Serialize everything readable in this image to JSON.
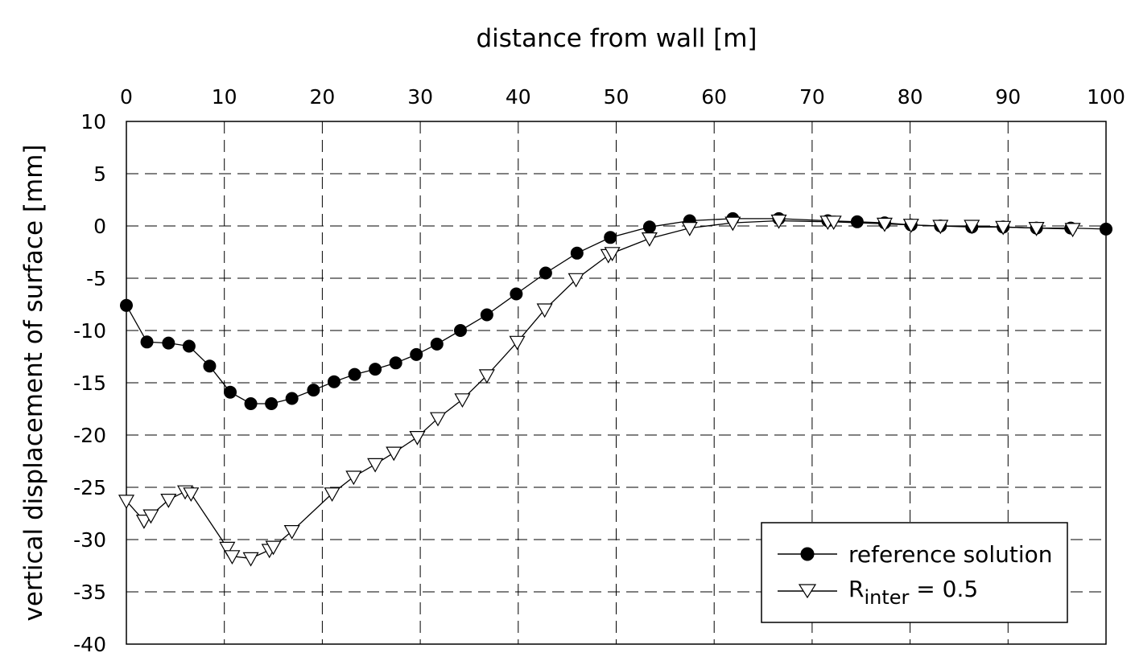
{
  "chart_data": {
    "type": "line",
    "xlabel": "distance from wall [m]",
    "ylabel": "vertical displacement of surface [mm]",
    "xlim": [
      0,
      100
    ],
    "ylim": [
      -40,
      10
    ],
    "xticks": [
      "0",
      "10",
      "20",
      "30",
      "40",
      "50",
      "60",
      "70",
      "80",
      "90",
      "100"
    ],
    "yticks": [
      "10",
      "5",
      "0",
      "-5",
      "-10",
      "-15",
      "-20",
      "-25",
      "-30",
      "-35",
      "-40"
    ],
    "x_axis_position": "top",
    "grid": true,
    "legend_position": "bottom-right",
    "legend": {
      "series1_label": "reference solution",
      "series2_label_main": "R",
      "series2_label_sub": "inter",
      "series2_label_rest": " = 0.5"
    },
    "series": [
      {
        "name": "reference solution",
        "marker": "filled-circle",
        "x": [
          0,
          2.1,
          4.3,
          6.4,
          8.5,
          10.6,
          12.7,
          14.8,
          16.9,
          19.1,
          21.2,
          23.3,
          25.4,
          27.5,
          29.6,
          31.7,
          34.1,
          36.8,
          39.8,
          42.8,
          46.0,
          49.4,
          53.4,
          57.5,
          61.9,
          66.6,
          71.6,
          74.6,
          77.4,
          80.1,
          83.1,
          86.3,
          89.5,
          92.9,
          96.4,
          100
        ],
        "y": [
          -7.6,
          -11.1,
          -11.2,
          -11.5,
          -13.4,
          -15.9,
          -17.0,
          -17.0,
          -16.5,
          -15.7,
          -14.9,
          -14.2,
          -13.7,
          -13.1,
          -12.3,
          -11.3,
          -10.0,
          -8.5,
          -6.5,
          -4.5,
          -2.6,
          -1.1,
          -0.1,
          0.5,
          0.7,
          0.7,
          0.5,
          0.4,
          0.3,
          0.1,
          0.0,
          -0.1,
          -0.1,
          -0.2,
          -0.2,
          -0.3
        ]
      },
      {
        "name": "R_inter = 0.5",
        "marker": "open-triangle-down",
        "x": [
          0,
          1.8,
          2.5,
          4.3,
          6.0,
          6.6,
          10.3,
          10.8,
          12.7,
          14.6,
          15.0,
          16.9,
          21.0,
          23.2,
          25.4,
          27.3,
          29.7,
          31.8,
          34.3,
          36.8,
          39.9,
          42.7,
          45.9,
          49.2,
          49.6,
          53.4,
          57.5,
          61.9,
          66.6,
          71.6,
          72.2,
          77.4,
          80.1,
          83.1,
          86.3,
          89.5,
          92.9,
          96.6
        ],
        "y": [
          -26.3,
          -28.2,
          -27.7,
          -26.2,
          -25.4,
          -25.6,
          -30.8,
          -31.6,
          -31.8,
          -31.0,
          -30.7,
          -29.2,
          -25.6,
          -24.0,
          -22.8,
          -21.7,
          -20.2,
          -18.4,
          -16.6,
          -14.3,
          -11.1,
          -8.0,
          -5.1,
          -2.8,
          -2.6,
          -1.2,
          -0.2,
          0.3,
          0.5,
          0.4,
          0.4,
          0.2,
          0.1,
          0.0,
          0.0,
          -0.1,
          -0.2,
          -0.3
        ]
      }
    ]
  }
}
